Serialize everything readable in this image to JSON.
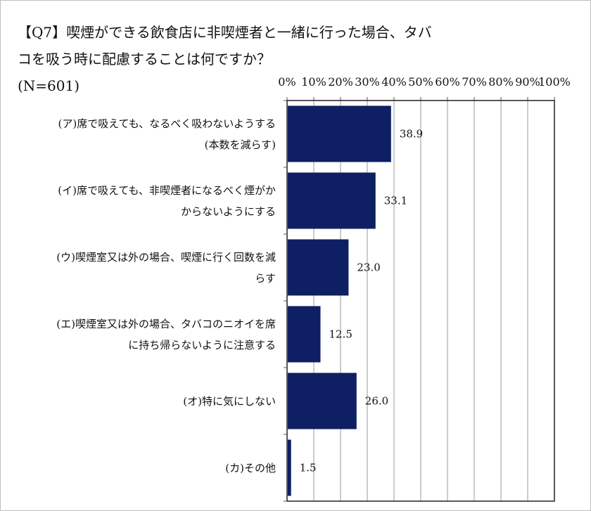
{
  "chart_data": {
    "type": "bar",
    "orientation": "horizontal",
    "title_lines": [
      "【Q7】喫煙ができる飲食店に非喫煙者と一緒に行った場合、タバ",
      "コを吸う時に配慮することは何ですか？",
      "(N=601)"
    ],
    "categories": [
      [
        "(ア)席で吸えても、なるべく吸わないようする",
        "(本数を減らす)"
      ],
      [
        "(イ)席で吸えても、非喫煙者になるべく煙がか",
        "からないようにする"
      ],
      [
        "(ウ)喫煙室又は外の場合、喫煙に行く回数を減",
        "らす"
      ],
      [
        "(エ)喫煙室又は外の場合、タバコのニオイを席",
        "に持ち帰らないように注意する"
      ],
      [
        "(オ)特に気にしない"
      ],
      [
        "(カ)その他"
      ]
    ],
    "values": [
      38.9,
      33.1,
      23.0,
      12.5,
      26.0,
      1.5
    ],
    "value_labels": [
      "38.9",
      "33.1",
      "23.0",
      "12.5",
      "26.0",
      "1.5"
    ],
    "xlim": [
      0,
      100
    ],
    "x_ticks": [
      "0%",
      "10%",
      "20%",
      "30%",
      "40%",
      "50%",
      "60%",
      "70%",
      "80%",
      "90%",
      "100%"
    ],
    "x_axis_position": "top",
    "grid": true,
    "bar_color": "#0f1f63"
  }
}
